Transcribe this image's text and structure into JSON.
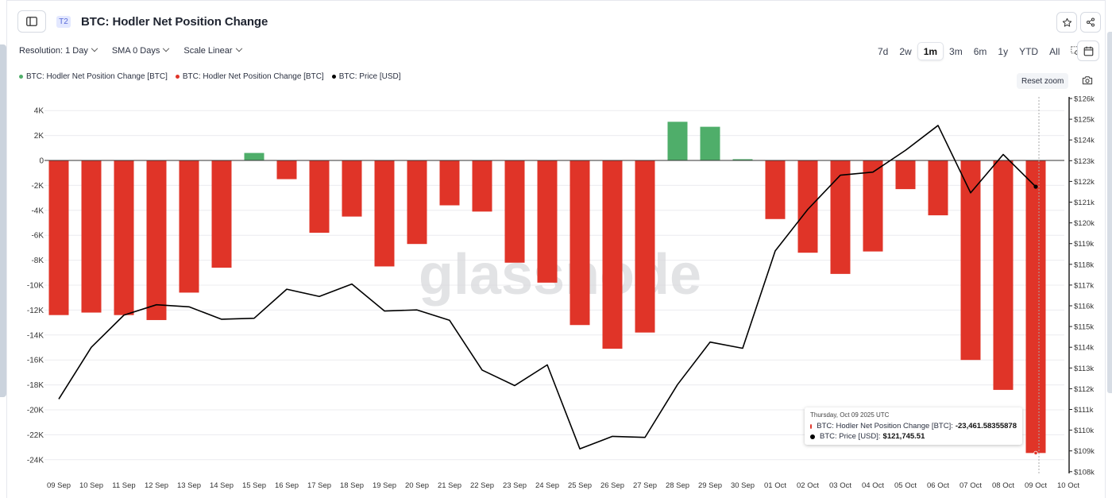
{
  "header": {
    "tier_badge": "T2",
    "title": "BTC: Hodler Net Position Change"
  },
  "toolbar": {
    "resolution_label": "Resolution: 1 Day",
    "sma_label": "SMA 0 Days",
    "scale_label": "Scale Linear",
    "ranges": [
      "7d",
      "2w",
      "1m",
      "3m",
      "6m",
      "1y",
      "YTD",
      "All"
    ],
    "active_range": "1m",
    "reset_zoom_label": "Reset zoom"
  },
  "icons": [
    "sidebar-toggle-icon",
    "star-icon",
    "share-icon",
    "zoom-select-icon",
    "calendar-icon",
    "camera-icon"
  ],
  "legend": {
    "items": [
      {
        "label": "BTC: Hodler Net Position Change [BTC]",
        "color": "#4fae6a"
      },
      {
        "label": "BTC: Hodler Net Position Change [BTC]",
        "color": "#e03428"
      },
      {
        "label": "BTC: Price [USD]",
        "color": "#000000"
      }
    ]
  },
  "chart_data": {
    "type": "bar",
    "watermark": "glassnode",
    "categories": [
      "09 Sep",
      "10 Sep",
      "11 Sep",
      "12 Sep",
      "13 Sep",
      "14 Sep",
      "15 Sep",
      "16 Sep",
      "17 Sep",
      "18 Sep",
      "19 Sep",
      "20 Sep",
      "21 Sep",
      "22 Sep",
      "23 Sep",
      "24 Sep",
      "25 Sep",
      "26 Sep",
      "27 Sep",
      "28 Sep",
      "29 Sep",
      "30 Sep",
      "01 Oct",
      "02 Oct",
      "03 Oct",
      "04 Oct",
      "05 Oct",
      "06 Oct",
      "07 Oct",
      "08 Oct",
      "09 Oct"
    ],
    "x_tick_labels": [
      "09 Sep",
      "10 Sep",
      "11 Sep",
      "12 Sep",
      "13 Sep",
      "14 Sep",
      "15 Sep",
      "16 Sep",
      "17 Sep",
      "18 Sep",
      "19 Sep",
      "20 Sep",
      "21 Sep",
      "22 Sep",
      "23 Sep",
      "24 Sep",
      "25 Sep",
      "26 Sep",
      "27 Sep",
      "28 Sep",
      "29 Sep",
      "30 Sep",
      "01 Oct",
      "02 Oct",
      "03 Oct",
      "04 Oct",
      "05 Oct",
      "06 Oct",
      "07 Oct",
      "08 Oct",
      "09 Oct",
      "10 Oct"
    ],
    "series": [
      {
        "name": "BTC: Hodler Net Position Change [BTC]",
        "axis": "left",
        "positive_color": "#4fae6a",
        "negative_color": "#e03428",
        "values": [
          -12400,
          -12200,
          -12400,
          -12800,
          -10600,
          -8600,
          600,
          -1500,
          -5800,
          -4500,
          -8500,
          -6700,
          -3600,
          -4100,
          -8200,
          -9800,
          -13200,
          -15100,
          -13800,
          3100,
          2700,
          100,
          -4700,
          -7400,
          -9100,
          -7300,
          -2300,
          -4400,
          -16000,
          -18400,
          -23461.58
        ]
      },
      {
        "name": "BTC: Price [USD]",
        "axis": "right",
        "type": "line",
        "color": "#000000",
        "values": [
          111500,
          114000,
          115550,
          116050,
          115950,
          115350,
          115400,
          116800,
          116450,
          117050,
          115750,
          115800,
          115300,
          112900,
          112150,
          113150,
          109100,
          109700,
          109650,
          112200,
          114250,
          113950,
          118650,
          120650,
          122300,
          122450,
          123500,
          124700,
          121450,
          123300,
          121745.51
        ]
      }
    ],
    "y_left": {
      "ticks": [
        "4K",
        "2K",
        "0",
        "-2K",
        "-4K",
        "-6K",
        "-8K",
        "-10K",
        "-12K",
        "-14K",
        "-16K",
        "-18K",
        "-20K",
        "-22K",
        "-24K"
      ],
      "min": -25000,
      "max": 4000
    },
    "y_right": {
      "ticks": [
        "$126k",
        "$125k",
        "$124k",
        "$123k",
        "$122k",
        "$121k",
        "$120k",
        "$119k",
        "$118k",
        "$117k",
        "$116k",
        "$115k",
        "$114k",
        "$113k",
        "$112k",
        "$111k",
        "$110k",
        "$109k",
        "$108k"
      ],
      "min": 108000,
      "max": 126000
    },
    "grid": true,
    "tooltip": {
      "date": "Thursday, Oct 09 2025 UTC",
      "rows": [
        {
          "label": "BTC: Hodler Net Position Change [BTC]:",
          "value": "-23,461.58355878",
          "color": "#e03428"
        },
        {
          "label": "BTC: Price [USD]:",
          "value": "$121,745.51",
          "color": "#000000"
        }
      ]
    }
  }
}
